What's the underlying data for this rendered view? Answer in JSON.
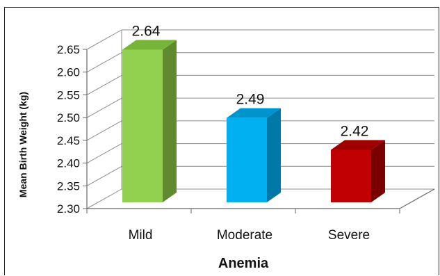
{
  "chart_data": {
    "type": "bar",
    "categories": [
      "Mild",
      "Moderate",
      "Severe"
    ],
    "values": [
      2.64,
      2.49,
      2.42
    ],
    "data_labels": [
      "2.64",
      "2.49",
      "2.42"
    ],
    "ytick_labels": [
      "2.30",
      "2.35",
      "2.40",
      "2.45",
      "2.50",
      "2.55",
      "2.60",
      "2.65"
    ],
    "yticks": [
      2.3,
      2.35,
      2.4,
      2.45,
      2.5,
      2.55,
      2.6,
      2.65
    ],
    "ylim": [
      2.3,
      2.65
    ],
    "xlabel": "Anemia",
    "ylabel": "Mean Birth Weight (kg)",
    "grid": true,
    "style": "3d",
    "colors": {
      "front": [
        "#92d050",
        "#00b0f0",
        "#c00000"
      ],
      "side": [
        "#5f8a2e",
        "#0079a8",
        "#7a0000"
      ],
      "top": [
        "#79b43a",
        "#0094cc",
        "#9e0000"
      ]
    }
  }
}
